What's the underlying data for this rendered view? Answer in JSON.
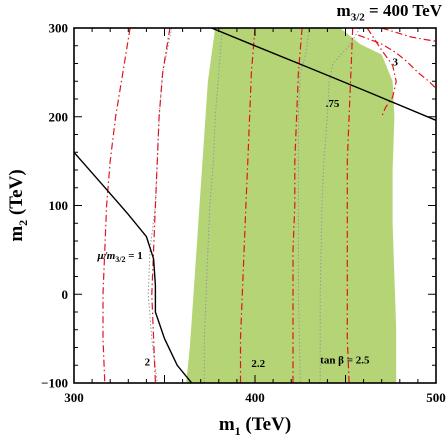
{
  "chart_data": {
    "type": "contour",
    "title": "m",
    "title_subscript": "3/2",
    "title_value": " = 400 TeV",
    "xlabel": "m",
    "xlabel_subscript": "1",
    "xlabel_unit": " (TeV)",
    "ylabel": "m",
    "ylabel_subscript": "2",
    "ylabel_unit": " (TeV)",
    "xlim": [
      300,
      500
    ],
    "ylim": [
      -100,
      300
    ],
    "x_ticks": [
      300,
      400,
      500
    ],
    "x_tick_labels": [
      "300",
      "400",
      "500"
    ],
    "y_ticks": [
      -100,
      0,
      100,
      200,
      300
    ],
    "y_tick_labels": [
      "−100",
      "0",
      "100",
      "200",
      "300"
    ],
    "colors": {
      "shaded": "#b5d475",
      "red_dashdot": "#e2141c",
      "gray_dotted": "#8e9aa8",
      "solid": "#000000"
    },
    "shaded_region": {
      "left_boundary": [
        [
          378,
          300
        ],
        [
          374,
          240
        ],
        [
          372,
          180
        ],
        [
          370,
          120
        ],
        [
          368,
          60
        ],
        [
          366,
          0
        ],
        [
          364,
          -60
        ],
        [
          362,
          -100
        ]
      ],
      "right_boundary": [
        [
          478,
          -100
        ],
        [
          478,
          -40
        ],
        [
          477,
          20
        ],
        [
          476,
          80
        ],
        [
          476,
          140
        ],
        [
          477,
          200
        ],
        [
          476,
          240
        ],
        [
          470,
          270
        ],
        [
          458,
          282
        ],
        [
          447,
          300
        ]
      ]
    },
    "red_dashdot_contours": [
      {
        "label": "",
        "points": [
          [
            331,
            300
          ],
          [
            327,
            250
          ],
          [
            323,
            200
          ],
          [
            320,
            150
          ],
          [
            318,
            100
          ],
          [
            317,
            50
          ],
          [
            316,
            0
          ],
          [
            316,
            -50
          ],
          [
            317,
            -100
          ]
        ]
      },
      {
        "label": "2",
        "points": [
          [
            353,
            300
          ],
          [
            349,
            250
          ],
          [
            347,
            200
          ],
          [
            346,
            150
          ],
          [
            345,
            100
          ],
          [
            344,
            50
          ],
          [
            343,
            0
          ],
          [
            344,
            -50
          ],
          [
            345,
            -100
          ]
        ]
      },
      {
        "label": "2.2",
        "points": [
          [
            400,
            300
          ],
          [
            398,
            250
          ],
          [
            397,
            200
          ],
          [
            396,
            150
          ],
          [
            395,
            100
          ],
          [
            394,
            50
          ],
          [
            393,
            0
          ],
          [
            392,
            -50
          ],
          [
            392,
            -100
          ]
        ]
      },
      {
        "label": "",
        "points": [
          [
            426,
            300
          ],
          [
            424,
            250
          ],
          [
            423,
            200
          ],
          [
            422,
            150
          ],
          [
            422,
            100
          ],
          [
            421,
            50
          ],
          [
            421,
            0
          ],
          [
            421,
            -50
          ],
          [
            421,
            -100
          ]
        ]
      },
      {
        "label": "tan β = 2.5",
        "points": [
          [
            454,
            300
          ],
          [
            453,
            250
          ],
          [
            452,
            200
          ],
          [
            451,
            150
          ],
          [
            451,
            100
          ],
          [
            451,
            50
          ],
          [
            451,
            0
          ],
          [
            451,
            -50
          ],
          [
            452,
            -100
          ]
        ]
      },
      {
        "label": "",
        "points": [
          [
            462,
            300
          ],
          [
            470,
            275
          ],
          [
            476,
            258
          ],
          [
            478,
            240
          ],
          [
            476,
            222
          ],
          [
            472,
            210
          ],
          [
            470,
            200
          ]
        ]
      },
      {
        "label": "3",
        "points": [
          [
            457,
            292
          ],
          [
            470,
            282
          ],
          [
            478,
            272
          ],
          [
            484,
            262
          ],
          [
            490,
            250
          ],
          [
            496,
            240
          ],
          [
            500,
            232
          ]
        ]
      },
      {
        "label": "",
        "points": [
          [
            470,
            300
          ],
          [
            478,
            295
          ],
          [
            486,
            290
          ],
          [
            494,
            287
          ],
          [
            500,
            285
          ]
        ]
      }
    ],
    "gray_dotted_contours": [
      {
        "label": "",
        "points": [
          [
            354,
            300
          ],
          [
            349,
            250
          ],
          [
            347,
            200
          ],
          [
            345,
            100
          ],
          [
            342,
            50
          ],
          [
            341,
            0
          ],
          [
            343,
            -50
          ],
          [
            346,
            -100
          ]
        ]
      },
      {
        "label": "",
        "points": [
          [
            382,
            300
          ],
          [
            380,
            250
          ],
          [
            378,
            200
          ],
          [
            377,
            150
          ],
          [
            375,
            100
          ],
          [
            374,
            50
          ],
          [
            373,
            0
          ],
          [
            372,
            -50
          ],
          [
            372,
            -100
          ]
        ]
      },
      {
        "label": "",
        "points": [
          [
            430,
            300
          ],
          [
            428,
            270
          ],
          [
            425,
            250
          ],
          [
            424,
            200
          ],
          [
            424,
            150
          ],
          [
            424,
            100
          ],
          [
            424,
            50
          ],
          [
            424,
            0
          ],
          [
            425,
            -100
          ]
        ]
      },
      {
        "label": "",
        "points": [
          [
            458,
            300
          ],
          [
            452,
            280
          ],
          [
            443,
            260
          ],
          [
            441,
            240
          ],
          [
            440,
            200
          ],
          [
            438,
            150
          ],
          [
            437,
            100
          ],
          [
            436,
            0
          ],
          [
            436,
            -100
          ]
        ]
      }
    ],
    "black_solid_lines": [
      {
        "label": "μ/m3/2 = 1",
        "points": [
          [
            300,
            160
          ],
          [
            315,
            125
          ],
          [
            330,
            90
          ],
          [
            340,
            65
          ],
          [
            344,
            40
          ],
          [
            345,
            10
          ],
          [
            345,
            -20
          ],
          [
            350,
            -50
          ],
          [
            357,
            -80
          ],
          [
            365,
            -100
          ]
        ]
      },
      {
        "label": ".75",
        "points": [
          [
            376,
            300
          ],
          [
            400,
            280
          ],
          [
            430,
            255
          ],
          [
            460,
            230
          ],
          [
            500,
            196
          ]
        ]
      }
    ],
    "annotations": [
      {
        "text": "μ/m",
        "sub": "3/2",
        "tail": " = 1",
        "x": 313,
        "y": 40
      },
      {
        "text": "2",
        "x": 339,
        "y": -80
      },
      {
        "text": "2.2",
        "x": 398,
        "y": -82
      },
      {
        "text": "tan β = 2.5",
        "x": 436,
        "y": -78
      },
      {
        "text": ".75",
        "x": 439,
        "y": 211
      },
      {
        "text": "3",
        "x": 476,
        "y": 258
      }
    ]
  }
}
